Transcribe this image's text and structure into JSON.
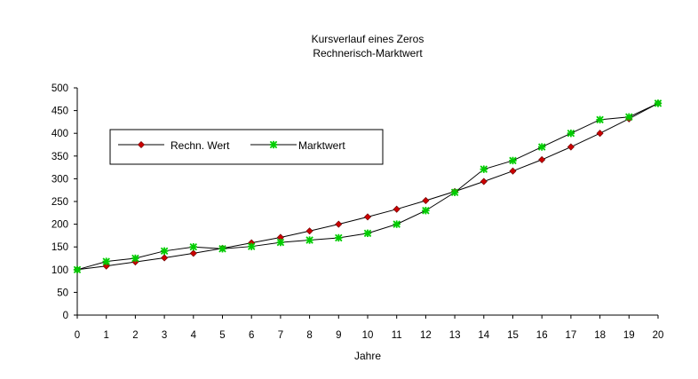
{
  "chart_data": {
    "type": "line",
    "title": "Kursverlauf eines Zeros",
    "subtitle": "Rechnerisch-Marktwert",
    "xlabel": "Jahre",
    "ylabel": "",
    "x": [
      0,
      1,
      2,
      3,
      4,
      5,
      6,
      7,
      8,
      9,
      10,
      11,
      12,
      13,
      14,
      15,
      16,
      17,
      18,
      19,
      20
    ],
    "xlim": [
      0,
      20
    ],
    "ylim": [
      0,
      500
    ],
    "ytick_step": 50,
    "grid": false,
    "legend_position": "upper-left",
    "series": [
      {
        "name": "Rechn. Wert",
        "color": "#cc0000",
        "marker": "diamond",
        "values": [
          100,
          108,
          117,
          126,
          136,
          147,
          159,
          171,
          185,
          200,
          216,
          233,
          252,
          272,
          294,
          317,
          342,
          370,
          400,
          432,
          466
        ]
      },
      {
        "name": "Marktwert",
        "color": "#00cc00",
        "marker": "asterisk",
        "values": [
          100,
          118,
          125,
          141,
          150,
          146,
          151,
          160,
          165,
          170,
          180,
          200,
          230,
          270,
          321,
          340,
          370,
          400,
          430,
          436,
          466
        ]
      }
    ]
  }
}
